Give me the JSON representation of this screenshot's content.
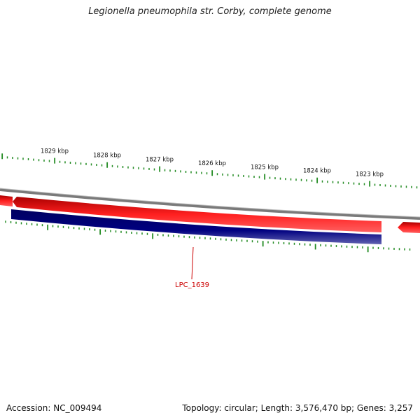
{
  "title": "Legionella pneumophila str. Corby, complete genome",
  "accession_text": "Accession: NC_009494",
  "summary_text": "Topology: circular; Length: 3,576,470 bp; Genes: 3,257",
  "scale": {
    "labels": [
      "1829 kbp",
      "1828 kbp",
      "1827 kbp",
      "1826 kbp",
      "1825 kbp",
      "1824 kbp",
      "1823 kbp"
    ]
  },
  "genes": [
    {
      "label": "LPC_1639",
      "strand": "reverse",
      "color": "#000080"
    }
  ],
  "colors": {
    "forward_cds": "#ff0000",
    "reverse_cds": "#000080",
    "backbone": "#888888",
    "ticks": "#228b22",
    "label": "#cc0000"
  }
}
